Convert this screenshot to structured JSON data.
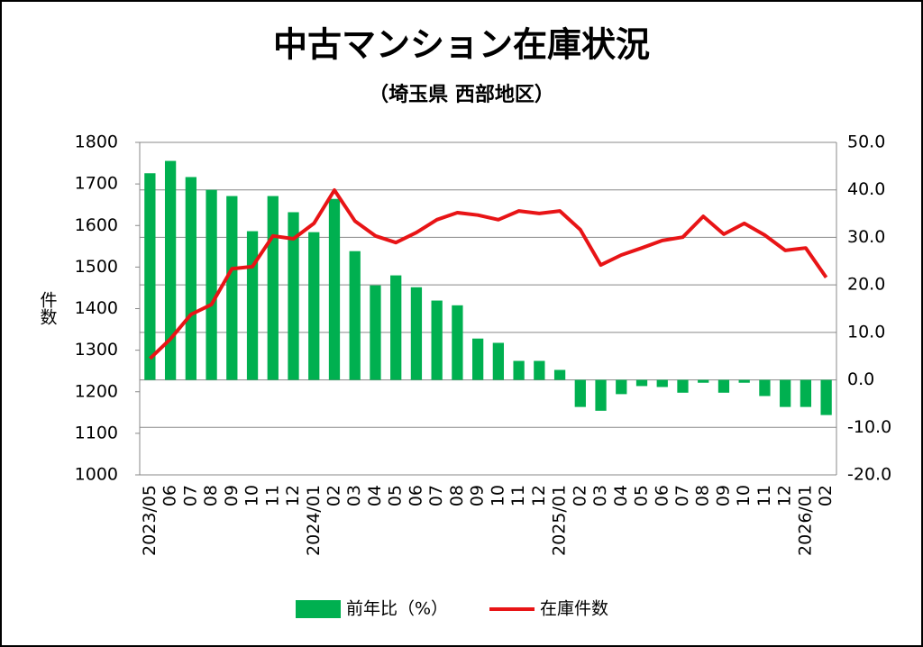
{
  "chart_data": {
    "type": "combo",
    "title": "中古マンション在庫状況",
    "subtitle": "（埼玉県 西部地区）",
    "y_label": "件数",
    "categories": [
      "2023/05",
      "06",
      "07",
      "08",
      "09",
      "10",
      "11",
      "12",
      "2024/01",
      "02",
      "03",
      "04",
      "05",
      "06",
      "07",
      "08",
      "09",
      "10",
      "11",
      "12",
      "2025/01",
      "02",
      "03",
      "04",
      "05",
      "06",
      "07",
      "08",
      "09",
      "10",
      "11",
      "12",
      "2026/01",
      "02"
    ],
    "series": [
      {
        "name": "前年比（%）",
        "type": "bar",
        "axis": "y2",
        "color": "#00b050",
        "values": [
          43.5,
          46.1,
          42.7,
          40.0,
          38.7,
          31.3,
          38.7,
          35.3,
          31.1,
          38.1,
          27.1,
          19.9,
          22.0,
          19.5,
          16.7,
          15.7,
          8.7,
          7.8,
          4.0,
          4.0,
          2.1,
          -5.7,
          -6.5,
          -3.0,
          -1.3,
          -1.5,
          -2.7,
          -0.6,
          -2.7,
          -0.6,
          -3.4,
          -5.7,
          -5.7,
          -7.4
        ]
      },
      {
        "name": "在庫件数",
        "type": "line",
        "axis": "y",
        "color": "#e81416",
        "values": [
          1280,
          1327,
          1386,
          1410,
          1496,
          1501,
          1575,
          1568,
          1605,
          1685,
          1611,
          1575,
          1559,
          1583,
          1614,
          1631,
          1625,
          1614,
          1635,
          1629,
          1635,
          1590,
          1505,
          1529,
          1546,
          1564,
          1572,
          1622,
          1579,
          1605,
          1577,
          1540,
          1546,
          1475
        ]
      }
    ],
    "ylim": [
      1000,
      1800
    ],
    "yticks": [
      1000,
      1100,
      1200,
      1300,
      1400,
      1500,
      1600,
      1700,
      1800
    ],
    "y2lim": [
      -20,
      50
    ],
    "y2ticks": [
      {
        "value": -20,
        "label": "-20.0"
      },
      {
        "value": -10,
        "label": "-10.0"
      },
      {
        "value": 0,
        "label": "0.0"
      },
      {
        "value": 10,
        "label": "10.0"
      },
      {
        "value": 20,
        "label": "20.0"
      },
      {
        "value": 30,
        "label": "30.0"
      },
      {
        "value": 40,
        "label": "40.0"
      },
      {
        "value": 50,
        "label": "50.0"
      }
    ],
    "y2_negative_label_color": "#e81416",
    "grid": true,
    "legend": "bottom"
  }
}
